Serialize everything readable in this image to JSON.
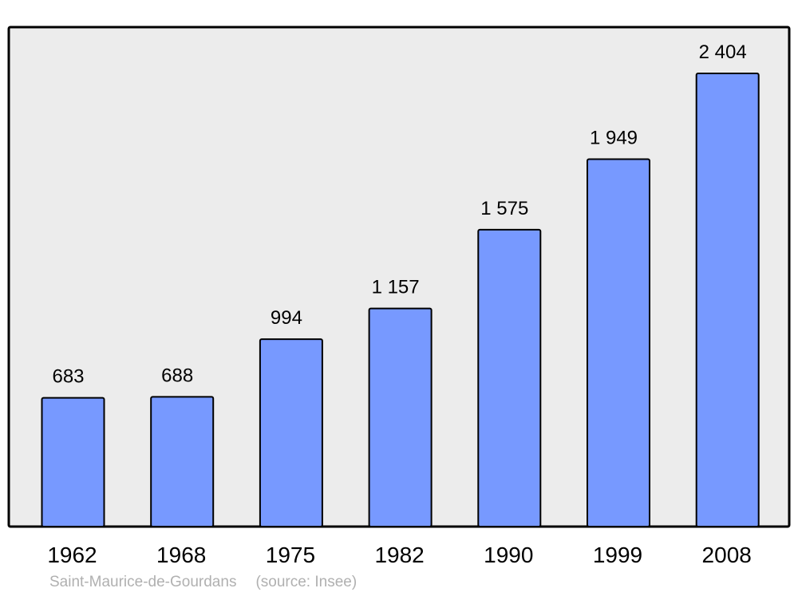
{
  "chart_data": {
    "type": "bar",
    "categories": [
      "1962",
      "1968",
      "1975",
      "1982",
      "1990",
      "1999",
      "2008"
    ],
    "values": [
      683,
      688,
      994,
      1157,
      1575,
      1949,
      2404
    ],
    "value_labels": [
      "683",
      "688",
      "994",
      "1 157",
      "1 575",
      "1 949",
      "2 404"
    ],
    "title": "",
    "xlabel": "",
    "ylabel": "",
    "ylim": [
      0,
      2650
    ],
    "grid": false,
    "legend": "none",
    "colors": {
      "bar_fill": "#7799ff",
      "bar_stroke": "#000000",
      "plot_background": "#ececec",
      "plot_border": "#000000"
    }
  },
  "caption": {
    "place": "Saint-Maurice-de-Gourdans",
    "source": "(source: Insee)"
  }
}
